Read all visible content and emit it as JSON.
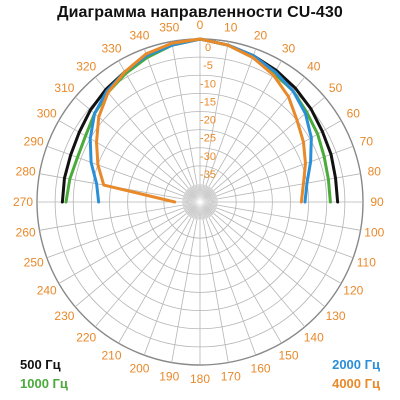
{
  "chart_data": {
    "type": "polar-line",
    "title": "Диаграмма направленности CU-430",
    "angle_unit": "deg",
    "angle_ticks": [
      0,
      10,
      20,
      30,
      40,
      50,
      60,
      70,
      80,
      90,
      100,
      110,
      120,
      130,
      140,
      150,
      160,
      170,
      180,
      190,
      200,
      210,
      220,
      230,
      240,
      250,
      260,
      270,
      280,
      290,
      300,
      310,
      320,
      330,
      340,
      350
    ],
    "angle_tick_color": "#e8892a",
    "radial_ticks": [
      0,
      -5,
      -10,
      -15,
      -20,
      -25,
      -30,
      -35
    ],
    "radial_tick_color": "#e8892a",
    "radial_range": [
      -40,
      0
    ],
    "grid": true,
    "series": [
      {
        "name": "500 Гц",
        "color": "#111111",
        "angles": [
          270,
          280,
          290,
          300,
          310,
          320,
          330,
          340,
          350,
          0,
          10,
          20,
          30,
          40,
          50,
          60,
          70,
          80,
          90
        ],
        "values": [
          -7,
          -7,
          -7,
          -6.5,
          -5.5,
          -4.5,
          -3.5,
          -2,
          -1,
          0,
          -1,
          -2,
          -3,
          -4,
          -5,
          -6,
          -6.5,
          -7,
          -7
        ]
      },
      {
        "name": "1000 Гц",
        "color": "#4aab3a",
        "angles": [
          270,
          280,
          290,
          300,
          310,
          320,
          330,
          340,
          350,
          0,
          10,
          20,
          30,
          40,
          50,
          60,
          70,
          80,
          90
        ],
        "values": [
          -8,
          -8.5,
          -9,
          -8.5,
          -7,
          -5.5,
          -4,
          -2.5,
          -1,
          0,
          -1,
          -2.5,
          -4,
          -5,
          -6.5,
          -7.5,
          -8.5,
          -9,
          -9
        ]
      },
      {
        "name": "2000 Гц",
        "color": "#2a8fd6",
        "angles": [
          270,
          280,
          290,
          300,
          310,
          320,
          330,
          340,
          350,
          0,
          10,
          20,
          30,
          40,
          50,
          60,
          70,
          80,
          90
        ],
        "values": [
          -17,
          -16,
          -13,
          -10,
          -7,
          -5,
          -3.5,
          -2,
          -1,
          0,
          -1,
          -2,
          -3.5,
          -5,
          -7,
          -9.5,
          -12.5,
          -15,
          -16
        ]
      },
      {
        "name": "4000 Гц",
        "color": "#e8892a",
        "angles": [
          270,
          280,
          290,
          300,
          310,
          320,
          330,
          340,
          350,
          0,
          10,
          20,
          30,
          40,
          50,
          60,
          70,
          80,
          90
        ],
        "values": [
          -38,
          -18,
          -15,
          -12,
          -8.5,
          -5.5,
          -3.5,
          -1.5,
          -0.5,
          0,
          -1,
          -2.5,
          -4.5,
          -7,
          -10,
          -12,
          -14,
          -16,
          -17
        ]
      }
    ],
    "legend": [
      {
        "label": "500 Гц",
        "color": "#111111",
        "placement": "bottom-left"
      },
      {
        "label": "1000 Гц",
        "color": "#4aab3a",
        "placement": "bottom-left"
      },
      {
        "label": "2000 Гц",
        "color": "#2a8fd6",
        "placement": "bottom-right"
      },
      {
        "label": "4000 Гц",
        "color": "#e8892a",
        "placement": "bottom-right"
      }
    ]
  }
}
